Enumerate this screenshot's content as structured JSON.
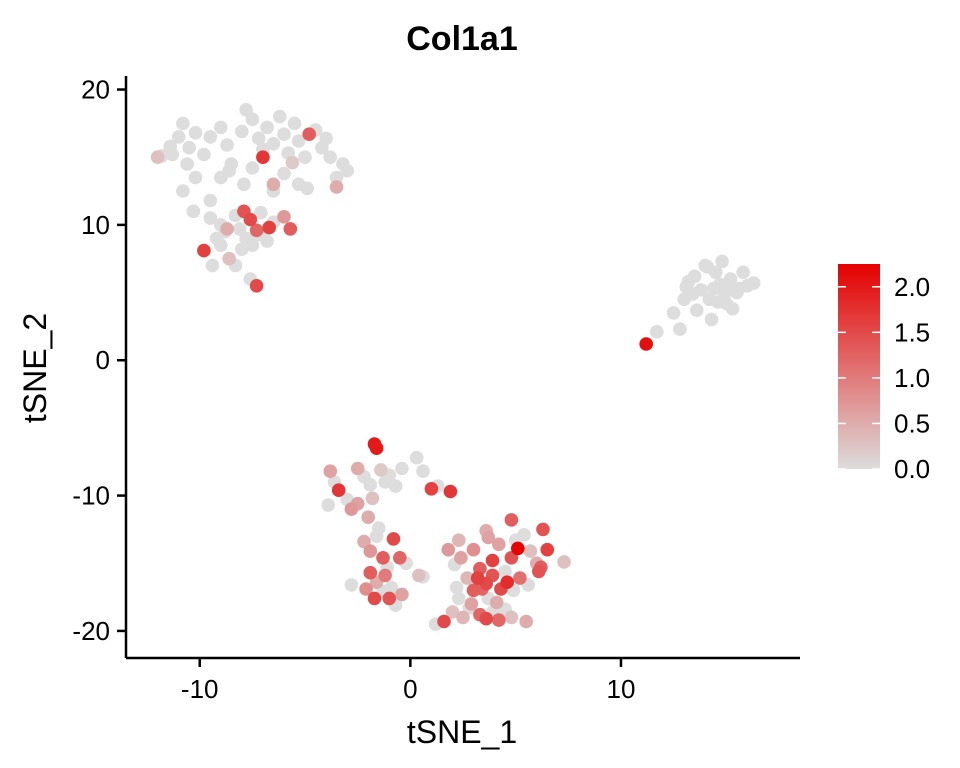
{
  "chart_data": {
    "type": "scatter",
    "title": "Col1a1",
    "xlabel": "tSNE_1",
    "ylabel": "tSNE_2",
    "xlim": [
      -13.5,
      18.5
    ],
    "ylim": [
      -22,
      21
    ],
    "xticks": [
      -10,
      0,
      10
    ],
    "yticks": [
      -20,
      -10,
      0,
      10,
      20
    ],
    "grid": false,
    "legend": {
      "title": "",
      "placement": "right",
      "min": 0.0,
      "max": 2.25,
      "ticks": [
        0.0,
        0.5,
        1.0,
        1.5,
        2.0
      ],
      "tick_labels": [
        "0.0",
        "0.5",
        "1.0",
        "1.5",
        "2.0"
      ],
      "low_color": "#dddddd",
      "high_color": "#e50000"
    },
    "points": [
      [
        -12.0,
        15.0,
        0.3
      ],
      [
        -11.4,
        15.8,
        0.0
      ],
      [
        -11.0,
        16.5,
        0.0
      ],
      [
        -11.3,
        15.2,
        0.0
      ],
      [
        -10.8,
        17.5,
        0.0
      ],
      [
        -10.5,
        15.7,
        0.0
      ],
      [
        -10.2,
        16.8,
        0.0
      ],
      [
        -10.6,
        14.5,
        0.0
      ],
      [
        -9.8,
        15.2,
        0.0
      ],
      [
        -9.5,
        16.5,
        0.0
      ],
      [
        -9.0,
        17.2,
        0.0
      ],
      [
        -8.7,
        15.9,
        0.0
      ],
      [
        -8.5,
        14.5,
        0.0
      ],
      [
        -8.0,
        16.9,
        0.0
      ],
      [
        -7.8,
        18.5,
        0.0
      ],
      [
        -7.5,
        17.8,
        0.0
      ],
      [
        -7.2,
        16.4,
        0.0
      ],
      [
        -7.0,
        15.6,
        0.0
      ],
      [
        -6.8,
        17.2,
        0.0
      ],
      [
        -6.5,
        16.0,
        0.0
      ],
      [
        -6.2,
        18.0,
        0.0
      ],
      [
        -6.0,
        16.7,
        0.0
      ],
      [
        -5.8,
        15.3,
        0.0
      ],
      [
        -5.5,
        17.5,
        0.0
      ],
      [
        -5.3,
        16.2,
        0.0
      ],
      [
        -5.0,
        15.0,
        0.0
      ],
      [
        -4.8,
        16.7,
        1.3
      ],
      [
        -4.5,
        17.0,
        0.0
      ],
      [
        -4.2,
        15.7,
        0.0
      ],
      [
        -4.0,
        16.4,
        0.0
      ],
      [
        -3.8,
        15.0,
        0.0
      ],
      [
        -3.5,
        13.5,
        0.0
      ],
      [
        -3.2,
        14.5,
        0.0
      ],
      [
        -3.0,
        14.0,
        0.0
      ],
      [
        -3.5,
        12.8,
        0.5
      ],
      [
        -9.0,
        13.5,
        0.0
      ],
      [
        -8.6,
        14.0,
        0.0
      ],
      [
        -7.9,
        13.0,
        0.0
      ],
      [
        -7.5,
        14.2,
        0.0
      ],
      [
        -7.0,
        15.0,
        1.7
      ],
      [
        -6.5,
        12.5,
        0.0
      ],
      [
        -6.0,
        13.8,
        0.0
      ],
      [
        -5.6,
        14.6,
        0.2
      ],
      [
        -5.3,
        13.0,
        0.0
      ],
      [
        -4.9,
        12.7,
        0.0
      ],
      [
        -10.8,
        12.5,
        0.0
      ],
      [
        -10.2,
        13.5,
        0.0
      ],
      [
        -9.5,
        11.8,
        0.0
      ],
      [
        -11.8,
        15.1,
        0.0
      ],
      [
        -6.5,
        13.0,
        0.5
      ],
      [
        -10.3,
        11.0,
        0.0
      ],
      [
        -9.5,
        10.5,
        0.0
      ],
      [
        -9.0,
        10.0,
        0.0
      ],
      [
        -8.7,
        9.7,
        0.5
      ],
      [
        -8.3,
        10.7,
        0.0
      ],
      [
        -7.9,
        11.0,
        1.4
      ],
      [
        -7.6,
        10.4,
        1.5
      ],
      [
        -7.3,
        9.6,
        1.2
      ],
      [
        -7.1,
        10.9,
        0.0
      ],
      [
        -6.7,
        9.8,
        1.6
      ],
      [
        -6.5,
        10.2,
        0.0
      ],
      [
        -6.0,
        10.6,
        0.7
      ],
      [
        -5.7,
        9.7,
        1.3
      ],
      [
        -9.8,
        8.1,
        1.6
      ],
      [
        -9.4,
        7.0,
        0.0
      ],
      [
        -9.0,
        8.5,
        0.0
      ],
      [
        -8.6,
        7.5,
        0.3
      ],
      [
        -8.3,
        7.0,
        0.0
      ],
      [
        -8.0,
        8.2,
        0.0
      ],
      [
        -7.8,
        9.0,
        0.0
      ],
      [
        -7.5,
        8.5,
        0.0
      ],
      [
        -7.2,
        9.3,
        0.0
      ],
      [
        -7.6,
        6.0,
        0.0
      ],
      [
        -7.3,
        5.5,
        1.5
      ],
      [
        -8.1,
        9.7,
        0.0
      ],
      [
        -8.8,
        9.5,
        0.0
      ],
      [
        -9.2,
        9.0,
        0.0
      ],
      [
        -6.8,
        8.8,
        0.0
      ],
      [
        12.5,
        3.5,
        0.0
      ],
      [
        12.8,
        2.3,
        0.0
      ],
      [
        11.7,
        2.1,
        0.0
      ],
      [
        11.2,
        1.2,
        2.1
      ],
      [
        13.0,
        4.5,
        0.0
      ],
      [
        13.2,
        5.8,
        0.0
      ],
      [
        13.5,
        6.2,
        0.0
      ],
      [
        13.8,
        5.2,
        0.0
      ],
      [
        14.0,
        7.0,
        0.0
      ],
      [
        14.2,
        4.5,
        0.0
      ],
      [
        14.5,
        6.5,
        0.0
      ],
      [
        14.7,
        5.6,
        0.0
      ],
      [
        15.0,
        4.2,
        0.0
      ],
      [
        15.2,
        6.0,
        0.0
      ],
      [
        15.5,
        5.0,
        0.0
      ],
      [
        15.8,
        6.5,
        0.0
      ],
      [
        16.0,
        5.5,
        0.0
      ],
      [
        16.3,
        5.7,
        0.0
      ],
      [
        14.3,
        3.0,
        0.0
      ],
      [
        13.6,
        3.7,
        0.0
      ],
      [
        14.8,
        7.3,
        0.0
      ],
      [
        15.3,
        3.8,
        0.0
      ],
      [
        13.4,
        4.9,
        0.0
      ],
      [
        14.1,
        6.9,
        0.0
      ],
      [
        14.9,
        4.9,
        0.0
      ],
      [
        15.6,
        5.3,
        0.0
      ],
      [
        14.4,
        5.3,
        0.0
      ],
      [
        13.1,
        5.4,
        0.0
      ],
      [
        14.6,
        4.3,
        0.0
      ],
      [
        15.1,
        5.2,
        0.0
      ],
      [
        -3.8,
        -8.2,
        0.6
      ],
      [
        -3.6,
        -9.0,
        0.0
      ],
      [
        -3.4,
        -9.6,
        1.7
      ],
      [
        -3.0,
        -10.3,
        0.0
      ],
      [
        -2.8,
        -11.0,
        0.7
      ],
      [
        -2.5,
        -8.0,
        0.5
      ],
      [
        -2.2,
        -8.6,
        0.0
      ],
      [
        -1.9,
        -9.2,
        0.0
      ],
      [
        -1.7,
        -6.2,
        2.0
      ],
      [
        -1.6,
        -6.5,
        2.0
      ],
      [
        -1.4,
        -8.1,
        0.2
      ],
      [
        -1.2,
        -9.0,
        0.0
      ],
      [
        -1.0,
        -8.5,
        0.0
      ],
      [
        -0.7,
        -9.3,
        0.0
      ],
      [
        -0.4,
        -8.0,
        0.0
      ],
      [
        0.3,
        -7.2,
        0.0
      ],
      [
        0.6,
        -8.2,
        0.0
      ],
      [
        1.0,
        -9.5,
        1.6
      ],
      [
        1.9,
        -9.7,
        1.7
      ],
      [
        1.3,
        -9.3,
        0.0
      ],
      [
        -3.9,
        -10.7,
        0.0
      ],
      [
        -2.5,
        -10.6,
        0.6
      ],
      [
        -2.0,
        -11.6,
        0.5
      ],
      [
        -1.5,
        -12.4,
        0.0
      ],
      [
        -1.8,
        -10.2,
        0.3
      ],
      [
        -2.2,
        -13.4,
        0.5
      ],
      [
        -1.9,
        -14.1,
        0.7
      ],
      [
        -1.6,
        -13.0,
        0.0
      ],
      [
        -1.3,
        -14.6,
        1.3
      ],
      [
        -1.1,
        -15.3,
        0.0
      ],
      [
        -0.8,
        -13.2,
        1.5
      ],
      [
        -0.5,
        -14.6,
        1.2
      ],
      [
        -0.2,
        -15.0,
        0.0
      ],
      [
        -1.9,
        -15.7,
        1.3
      ],
      [
        -1.6,
        -16.4,
        0.5
      ],
      [
        -1.3,
        -17.1,
        0.0
      ],
      [
        -1.0,
        -17.6,
        1.4
      ],
      [
        -0.7,
        -18.1,
        0.0
      ],
      [
        -2.1,
        -16.9,
        0.8
      ],
      [
        -2.8,
        -16.6,
        0.0
      ],
      [
        -1.2,
        -15.9,
        1.0
      ],
      [
        -0.9,
        -16.8,
        0.0
      ],
      [
        -1.7,
        -17.6,
        1.5
      ],
      [
        -0.4,
        -17.3,
        0.6
      ],
      [
        0.4,
        -15.9,
        0.3
      ],
      [
        1.2,
        -19.5,
        0.0
      ],
      [
        1.6,
        -19.3,
        1.5
      ],
      [
        2.0,
        -18.6,
        0.3
      ],
      [
        2.3,
        -17.6,
        0.0
      ],
      [
        2.5,
        -19.0,
        0.4
      ],
      [
        2.8,
        -18.3,
        0.0
      ],
      [
        3.0,
        -17.0,
        1.3
      ],
      [
        3.3,
        -18.8,
        1.2
      ],
      [
        3.6,
        -19.1,
        1.5
      ],
      [
        3.9,
        -18.6,
        0.0
      ],
      [
        4.2,
        -19.2,
        1.2
      ],
      [
        4.5,
        -18.4,
        0.0
      ],
      [
        4.8,
        -19.0,
        0.3
      ],
      [
        5.5,
        -19.3,
        0.5
      ],
      [
        4.1,
        -17.9,
        0.5
      ],
      [
        1.8,
        -14.0,
        0.7
      ],
      [
        2.1,
        -15.1,
        0.0
      ],
      [
        2.4,
        -14.6,
        0.6
      ],
      [
        2.7,
        -16.1,
        0.4
      ],
      [
        3.0,
        -14.0,
        0.8
      ],
      [
        3.3,
        -15.4,
        1.3
      ],
      [
        3.6,
        -16.5,
        1.5
      ],
      [
        3.9,
        -14.8,
        1.6
      ],
      [
        4.2,
        -13.6,
        0.6
      ],
      [
        4.5,
        -15.6,
        0.0
      ],
      [
        4.8,
        -14.6,
        1.4
      ],
      [
        5.1,
        -13.9,
        2.2
      ],
      [
        5.4,
        -12.9,
        0.0
      ],
      [
        5.7,
        -14.1,
        0.3
      ],
      [
        6.0,
        -15.0,
        0.5
      ],
      [
        6.3,
        -12.5,
        1.4
      ],
      [
        6.5,
        -14.0,
        1.6
      ],
      [
        6.2,
        -15.3,
        1.3
      ],
      [
        4.8,
        -11.8,
        1.3
      ],
      [
        3.6,
        -12.6,
        0.5
      ],
      [
        7.3,
        -14.9,
        0.3
      ],
      [
        6.1,
        -15.6,
        1.4
      ],
      [
        4.6,
        -16.4,
        1.8
      ],
      [
        4.3,
        -16.9,
        1.5
      ],
      [
        3.4,
        -16.9,
        1.2
      ],
      [
        3.7,
        -17.6,
        0.0
      ],
      [
        2.9,
        -18.0,
        0.6
      ],
      [
        3.2,
        -16.1,
        1.6
      ],
      [
        3.9,
        -15.9,
        1.4
      ],
      [
        2.2,
        -16.8,
        0.0
      ],
      [
        5.2,
        -16.1,
        1.1
      ],
      [
        4.9,
        -17.0,
        0.0
      ],
      [
        5.6,
        -16.6,
        0.0
      ],
      [
        3.7,
        -13.1,
        0.6
      ],
      [
        2.3,
        -13.3,
        0.4
      ],
      [
        0.6,
        -16.0,
        0.0
      ],
      [
        5.0,
        -13.3,
        0.0
      ]
    ]
  }
}
